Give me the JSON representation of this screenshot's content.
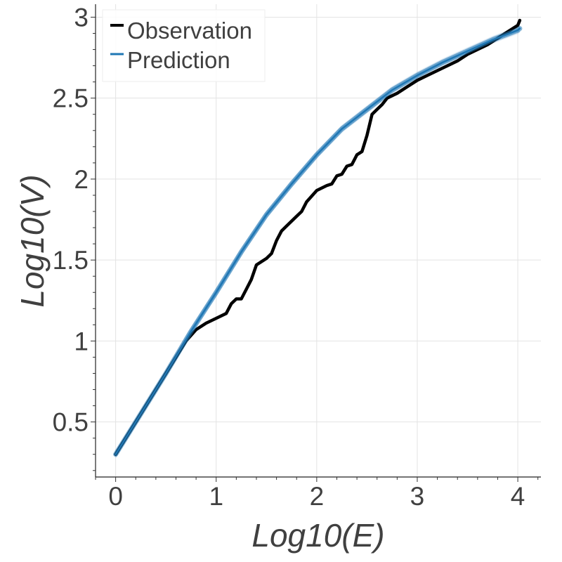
{
  "chart_data": {
    "type": "line",
    "xlabel": "Log10(E)",
    "ylabel": "Log10(V)",
    "xlim": [
      -0.2,
      4.23
    ],
    "ylim": [
      0.16,
      3.08
    ],
    "xticks": [
      0,
      1,
      2,
      3,
      4
    ],
    "xtick_labels": [
      "0",
      "1",
      "2",
      "3",
      "4"
    ],
    "yticks": [
      0.5,
      1,
      1.5,
      2,
      2.5,
      3
    ],
    "ytick_labels": [
      "0.5",
      "1",
      "1.5",
      "2",
      "2.5",
      "3"
    ],
    "grid": true,
    "legend_position": "top-left",
    "legend": [
      {
        "label": "Observation",
        "color": "#000000"
      },
      {
        "label": "Prediction",
        "color": "#1f77b4"
      }
    ],
    "series": [
      {
        "name": "Observation",
        "color": "#000000",
        "x": [
          0,
          0.3,
          0.6,
          0.7,
          0.8,
          0.9,
          1.0,
          1.1,
          1.15,
          1.2,
          1.25,
          1.3,
          1.35,
          1.4,
          1.5,
          1.55,
          1.6,
          1.65,
          1.7,
          1.75,
          1.8,
          1.85,
          1.9,
          2.0,
          2.1,
          2.15,
          2.2,
          2.25,
          2.3,
          2.35,
          2.4,
          2.45,
          2.5,
          2.55,
          2.6,
          2.65,
          2.7,
          2.8,
          2.9,
          3.0,
          3.1,
          3.2,
          3.3,
          3.4,
          3.5,
          3.6,
          3.7,
          3.8,
          3.9,
          4.0,
          4.02
        ],
        "y": [
          0.3,
          0.6,
          0.9,
          1.0,
          1.07,
          1.11,
          1.14,
          1.17,
          1.23,
          1.26,
          1.26,
          1.32,
          1.38,
          1.47,
          1.51,
          1.54,
          1.62,
          1.68,
          1.71,
          1.74,
          1.77,
          1.8,
          1.86,
          1.93,
          1.96,
          1.97,
          2.02,
          2.03,
          2.08,
          2.09,
          2.15,
          2.17,
          2.27,
          2.4,
          2.43,
          2.46,
          2.5,
          2.53,
          2.57,
          2.61,
          2.64,
          2.67,
          2.7,
          2.73,
          2.77,
          2.8,
          2.83,
          2.87,
          2.91,
          2.95,
          2.98
        ]
      },
      {
        "name": "Prediction",
        "color": "#1f77b4",
        "x": [
          0,
          0.25,
          0.5,
          0.75,
          1.0,
          1.25,
          1.5,
          1.75,
          2.0,
          2.25,
          2.5,
          2.75,
          3.0,
          3.25,
          3.5,
          3.75,
          4.0,
          4.02
        ],
        "y": [
          0.3,
          0.55,
          0.8,
          1.06,
          1.3,
          1.55,
          1.78,
          1.97,
          2.15,
          2.31,
          2.43,
          2.55,
          2.64,
          2.72,
          2.79,
          2.86,
          2.92,
          2.93
        ]
      }
    ]
  }
}
